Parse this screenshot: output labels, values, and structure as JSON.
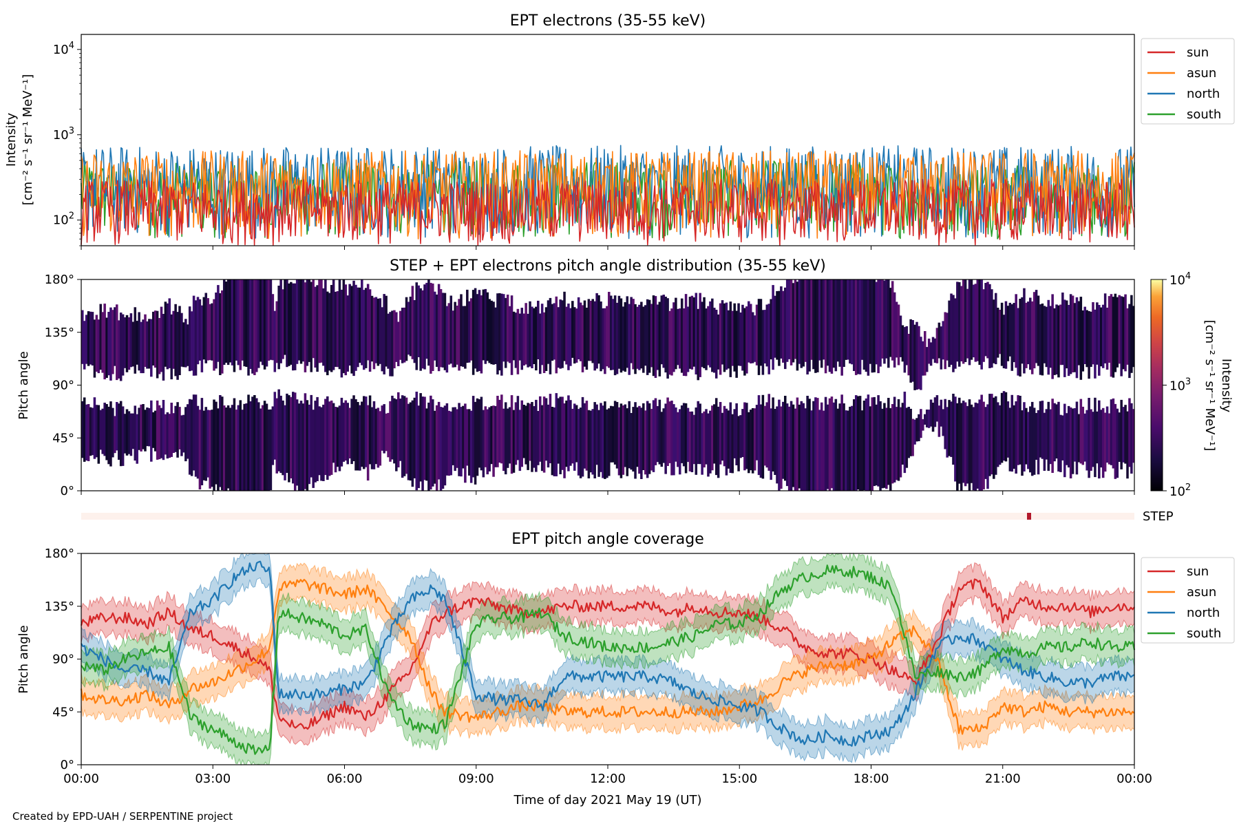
{
  "chart_data": [
    {
      "type": "line",
      "title": "EPT electrons (35-55 keV)",
      "ylabel_line1": "Intensity",
      "ylabel_line2": "[cm⁻² s⁻¹ sr⁻¹ MeV⁻¹]",
      "yscale": "log",
      "ylim": [
        50,
        15000
      ],
      "yticks": [
        {
          "value": 100,
          "base": "10",
          "exp": "2"
        },
        {
          "value": 1000,
          "base": "10",
          "exp": "3"
        },
        {
          "value": 10000,
          "base": "10",
          "exp": "4"
        }
      ],
      "xlim_hours": [
        0,
        24
      ],
      "legend_position": "outside-top-right",
      "series": [
        {
          "name": "sun",
          "color": "#d62728",
          "typical_range": [
            50,
            300
          ]
        },
        {
          "name": "asun",
          "color": "#ff7f0e",
          "typical_range": [
            60,
            650
          ]
        },
        {
          "name": "north",
          "color": "#1f77b4",
          "typical_range": [
            60,
            750
          ]
        },
        {
          "name": "south",
          "color": "#2ca02c",
          "typical_range": [
            60,
            500
          ]
        }
      ]
    },
    {
      "type": "heatmap",
      "title": "STEP + EPT electrons pitch angle distribution (35-55 keV)",
      "ylabel": "Pitch angle",
      "ylim": [
        0,
        180
      ],
      "yticks": [
        "0°",
        "45°",
        "90°",
        "135°",
        "180°"
      ],
      "yticks_values": [
        0,
        45,
        90,
        135,
        180
      ],
      "colorbar": {
        "label_line1": "Intensity",
        "label_line2": "[cm⁻² s⁻¹ sr⁻¹ MeV⁻¹]",
        "scale": "log",
        "range": [
          100,
          10000
        ],
        "ticks": [
          {
            "value": 100,
            "base": "10",
            "exp": "2"
          },
          {
            "value": 1000,
            "base": "10",
            "exp": "3"
          },
          {
            "value": 10000,
            "base": "10",
            "exp": "4"
          }
        ],
        "colormap": "inferno"
      }
    },
    {
      "type": "bar",
      "label": "STEP",
      "background_color": "#fdf1ec",
      "flag_color": "#b2182b",
      "flag_hour": 21.6
    },
    {
      "type": "area",
      "title": "EPT pitch angle coverage",
      "ylabel": "Pitch angle",
      "ylim": [
        0,
        180
      ],
      "yticks": [
        "0°",
        "45°",
        "90°",
        "135°",
        "180°"
      ],
      "yticks_values": [
        0,
        45,
        90,
        135,
        180
      ],
      "xlim_hours": [
        0,
        24
      ],
      "xlabel": "Time of day 2021 May 19 (UT)",
      "xticks": [
        "00:00",
        "03:00",
        "06:00",
        "09:00",
        "12:00",
        "15:00",
        "18:00",
        "21:00",
        "00:00"
      ],
      "xticks_hours": [
        0,
        3,
        6,
        9,
        12,
        15,
        18,
        21,
        24
      ],
      "legend_position": "outside-top-right",
      "series": [
        {
          "name": "sun",
          "color": "#d62728",
          "x": [
            0,
            0.5,
            1,
            1.5,
            2,
            2.5,
            3,
            3.5,
            4,
            4.3,
            4.5,
            5,
            5.5,
            6,
            6.5,
            7,
            7.5,
            8,
            8.3,
            9,
            9.5,
            10,
            10.5,
            11,
            12,
            13,
            13.5,
            14,
            14.5,
            15,
            15.5,
            16,
            16.5,
            17,
            17.5,
            18,
            18.5,
            19,
            19.5,
            20,
            20.5,
            21,
            21.5,
            22,
            22.5,
            23,
            23.5,
            24
          ],
          "y": [
            120,
            125,
            125,
            120,
            130,
            115,
            110,
            100,
            90,
            80,
            40,
            30,
            40,
            50,
            40,
            60,
            80,
            120,
            130,
            140,
            135,
            130,
            130,
            135,
            135,
            135,
            130,
            135,
            130,
            130,
            125,
            115,
            100,
            95,
            95,
            90,
            80,
            70,
            105,
            150,
            155,
            125,
            140,
            135,
            135,
            130,
            135,
            135
          ]
        },
        {
          "name": "asun",
          "color": "#ff7f0e",
          "x": [
            0,
            0.5,
            1,
            1.5,
            2,
            2.5,
            3,
            3.5,
            4,
            4.3,
            4.5,
            5,
            5.5,
            6,
            6.5,
            7,
            7.5,
            8,
            8.3,
            9,
            9.5,
            10,
            10.5,
            11,
            12,
            13,
            13.5,
            14,
            14.5,
            15,
            15.5,
            16,
            16.5,
            17,
            17.5,
            18,
            18.5,
            19,
            19.5,
            20,
            20.5,
            21,
            21.5,
            22,
            22.5,
            23,
            23.5,
            24
          ],
          "y": [
            60,
            55,
            55,
            60,
            50,
            65,
            70,
            80,
            90,
            100,
            150,
            155,
            150,
            145,
            150,
            130,
            110,
            60,
            45,
            40,
            45,
            50,
            50,
            45,
            45,
            45,
            45,
            45,
            45,
            50,
            55,
            70,
            80,
            85,
            85,
            90,
            105,
            115,
            90,
            30,
            30,
            50,
            45,
            50,
            45,
            45,
            45,
            45
          ]
        },
        {
          "name": "north",
          "color": "#1f77b4",
          "x": [
            0,
            0.5,
            1,
            1.5,
            2,
            2.5,
            3,
            3.5,
            4,
            4.3,
            4.5,
            5,
            5.5,
            6,
            6.5,
            7,
            7.5,
            8,
            8.3,
            9,
            9.5,
            10,
            10.5,
            11,
            12,
            13,
            13.5,
            14,
            14.5,
            15,
            15.5,
            16,
            16.5,
            17,
            17.5,
            18,
            18.5,
            19,
            19.5,
            20,
            20.5,
            21,
            21.5,
            22,
            22.5,
            23,
            23.5,
            24
          ],
          "y": [
            100,
            90,
            80,
            80,
            70,
            130,
            140,
            160,
            170,
            165,
            60,
            60,
            60,
            65,
            70,
            110,
            140,
            150,
            140,
            60,
            55,
            55,
            50,
            75,
            75,
            75,
            70,
            60,
            55,
            50,
            45,
            30,
            20,
            25,
            20,
            25,
            30,
            60,
            100,
            110,
            105,
            90,
            80,
            75,
            70,
            70,
            75,
            75
          ]
        },
        {
          "name": "south",
          "color": "#2ca02c",
          "x": [
            0,
            0.5,
            1,
            1.5,
            2,
            2.5,
            3,
            3.5,
            4,
            4.3,
            4.5,
            5,
            5.5,
            6,
            6.5,
            7,
            7.5,
            8,
            8.3,
            9,
            9.5,
            10,
            10.5,
            11,
            12,
            13,
            13.5,
            14,
            14.5,
            15,
            15.5,
            16,
            16.5,
            17,
            17.5,
            18,
            18.5,
            19,
            19.5,
            20,
            20.5,
            21,
            21.5,
            22,
            22.5,
            23,
            23.5,
            24
          ],
          "y": [
            85,
            80,
            90,
            95,
            100,
            40,
            30,
            20,
            10,
            15,
            130,
            125,
            120,
            110,
            115,
            60,
            35,
            30,
            35,
            120,
            125,
            125,
            130,
            110,
            100,
            100,
            105,
            110,
            120,
            120,
            130,
            150,
            160,
            165,
            165,
            160,
            150,
            75,
            80,
            75,
            80,
            100,
            95,
            100,
            100,
            105,
            100,
            100
          ]
        }
      ]
    }
  ],
  "credit": "Created by EPD-UAH / SERPENTINE project"
}
